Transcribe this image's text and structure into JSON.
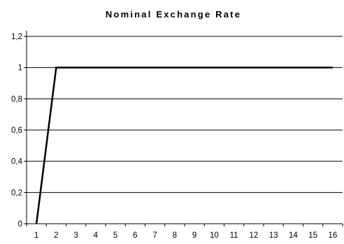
{
  "chart_data": {
    "type": "line",
    "title": "Nominal Exchange Rate",
    "xlabel": "",
    "ylabel": "",
    "x": [
      1,
      2,
      3,
      4,
      5,
      6,
      7,
      8,
      9,
      10,
      11,
      12,
      13,
      14,
      15,
      16
    ],
    "x_tick_labels": [
      "1",
      "2",
      "3",
      "4",
      "5",
      "6",
      "7",
      "8",
      "9",
      "10",
      "11",
      "12",
      "13",
      "14",
      "15",
      "16"
    ],
    "y_tick_labels": [
      "0",
      "0,2",
      "0,4",
      "0,6",
      "0,8",
      "1",
      "1,2"
    ],
    "y_ticks": [
      0,
      0.2,
      0.4,
      0.6,
      0.8,
      1.0,
      1.2
    ],
    "ylim": [
      0,
      1.2
    ],
    "grid": true,
    "legend": "none",
    "series": [
      {
        "values": [
          0,
          1,
          1,
          1,
          1,
          1,
          1,
          1,
          1,
          1,
          1,
          1,
          1,
          1,
          1,
          1
        ],
        "color": "#000000"
      }
    ]
  }
}
